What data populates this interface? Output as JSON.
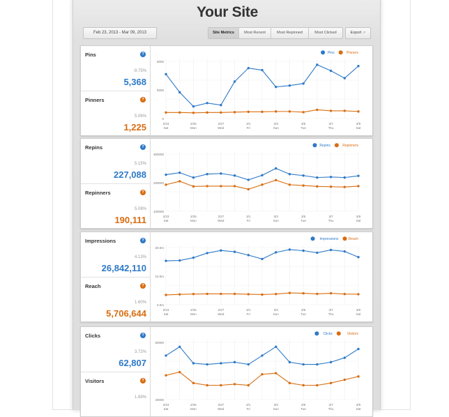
{
  "header": {
    "title": "Your Site",
    "date_range": "Feb 23, 2013 - Mar 09, 2013",
    "tabs": [
      "Site Metrics",
      "Most Recent",
      "Most Repinned",
      "Most Clicked"
    ],
    "active_tab": "Site Metrics",
    "export_label": "Export"
  },
  "colors": {
    "primary": "#2d79c7",
    "secondary": "#d86d10"
  },
  "x_labels": [
    [
      "2/23",
      "Sat"
    ],
    [
      "2/25",
      "Mon"
    ],
    [
      "2/27",
      "Wed"
    ],
    [
      "3/1",
      "Fri"
    ],
    [
      "3/3",
      "Sun"
    ],
    [
      "3/5",
      "Tue"
    ],
    [
      "3/7",
      "Thu"
    ],
    [
      "3/9",
      "Sat"
    ]
  ],
  "cards": [
    {
      "stats": [
        {
          "label": "Pins",
          "change": "-9.75%",
          "value": "5,368",
          "icon": "?"
        },
        {
          "label": "Pinners",
          "change": "5.06%",
          "value": "1,225",
          "icon": "?"
        }
      ]
    },
    {
      "stats": [
        {
          "label": "Repins",
          "change": "5.15%",
          "value": "227,088",
          "icon": "?"
        },
        {
          "label": "Repinners",
          "change": "5.08%",
          "value": "190,111",
          "icon": "?"
        }
      ]
    },
    {
      "stats": [
        {
          "label": "Impressions",
          "change": "4.13%",
          "value": "26,842,110",
          "icon": "?"
        },
        {
          "label": "Reach",
          "change": "1.60%",
          "value": "5,706,644",
          "icon": "?"
        }
      ]
    },
    {
      "stats": [
        {
          "label": "Clicks",
          "change": "3.72%",
          "value": "62,807",
          "icon": "?"
        },
        {
          "label": "Visitors",
          "change": "1.89%",
          "value": "",
          "icon": "?"
        }
      ]
    }
  ],
  "chart_data": [
    {
      "type": "line",
      "x": [
        "2/23",
        "2/24",
        "2/25",
        "2/26",
        "2/27",
        "2/28",
        "3/1",
        "3/2",
        "3/3",
        "3/4",
        "3/5",
        "3/6",
        "3/7",
        "3/8",
        "3/9"
      ],
      "ylim": [
        0,
        8500
      ],
      "yticks": [
        "0",
        "5000",
        "6000"
      ],
      "series": [
        {
          "name": "Pins",
          "values": [
            6600,
            3900,
            1800,
            2300,
            2000,
            5500,
            7500,
            7200,
            4700,
            4900,
            5200,
            8000,
            7100,
            6000,
            7800
          ]
        },
        {
          "name": "Pinners",
          "values": [
            900,
            900,
            850,
            900,
            900,
            950,
            1000,
            1000,
            1050,
            1050,
            950,
            1300,
            1150,
            1150,
            1050
          ]
        }
      ]
    },
    {
      "type": "line",
      "x": [
        "2/23",
        "2/24",
        "2/25",
        "2/26",
        "2/27",
        "2/28",
        "3/1",
        "3/2",
        "3/3",
        "3/4",
        "3/5",
        "3/6",
        "3/7",
        "3/8",
        "3/9"
      ],
      "ylim": [
        100000,
        300000
      ],
      "yticks": [
        "100000",
        "200000",
        "300000"
      ],
      "series": [
        {
          "name": "Repins",
          "values": [
            228000,
            235000,
            218000,
            230000,
            232000,
            225000,
            210000,
            226000,
            250000,
            230000,
            225000,
            218000,
            220000,
            218000,
            224000
          ]
        },
        {
          "name": "Repinners",
          "values": [
            193000,
            205000,
            187000,
            188000,
            188000,
            188000,
            177000,
            193000,
            209000,
            193000,
            190000,
            187000,
            186000,
            185000,
            188000
          ]
        }
      ]
    },
    {
      "type": "line",
      "x": [
        "2/23",
        "2/24",
        "2/25",
        "2/26",
        "2/27",
        "2/28",
        "3/1",
        "3/2",
        "3/3",
        "3/4",
        "3/5",
        "3/6",
        "3/7",
        "3/8",
        "3/9"
      ],
      "ylim": [
        0,
        31000000
      ],
      "yticks": [
        "0.0m",
        "10.0m",
        "30.0m"
      ],
      "series": [
        {
          "name": "Impressions",
          "values": [
            23800000,
            24000000,
            25500000,
            28000000,
            29400000,
            28700000,
            26900000,
            24800000,
            28400000,
            29900000,
            29300000,
            28200000,
            29700000,
            28900000,
            25800000
          ]
        },
        {
          "name": "Reach",
          "values": [
            5300000,
            5600000,
            5800000,
            5900000,
            5900000,
            5900000,
            5700000,
            5500000,
            5800000,
            6400000,
            6200000,
            5900000,
            6200000,
            5800000,
            5700000
          ]
        }
      ]
    },
    {
      "type": "line",
      "x": [
        "2/23",
        "2/24",
        "2/25",
        "2/26",
        "2/27",
        "2/28",
        "3/1",
        "3/2",
        "3/3",
        "3/4",
        "3/5",
        "3/6",
        "3/7",
        "3/8",
        "3/9"
      ],
      "ylim": [
        38000,
        64000
      ],
      "yticks": [
        "40000",
        "60000"
      ],
      "series": [
        {
          "name": "Clicks",
          "values": [
            58000,
            62000,
            54500,
            54000,
            54500,
            55000,
            54000,
            58000,
            62000,
            55000,
            54000,
            54000,
            55000,
            57000,
            61000
          ]
        },
        {
          "name": "Visitors",
          "values": [
            49000,
            50500,
            45500,
            44500,
            44500,
            45000,
            44500,
            49500,
            50000,
            45500,
            44500,
            44500,
            45500,
            47000,
            48500
          ]
        }
      ]
    }
  ]
}
